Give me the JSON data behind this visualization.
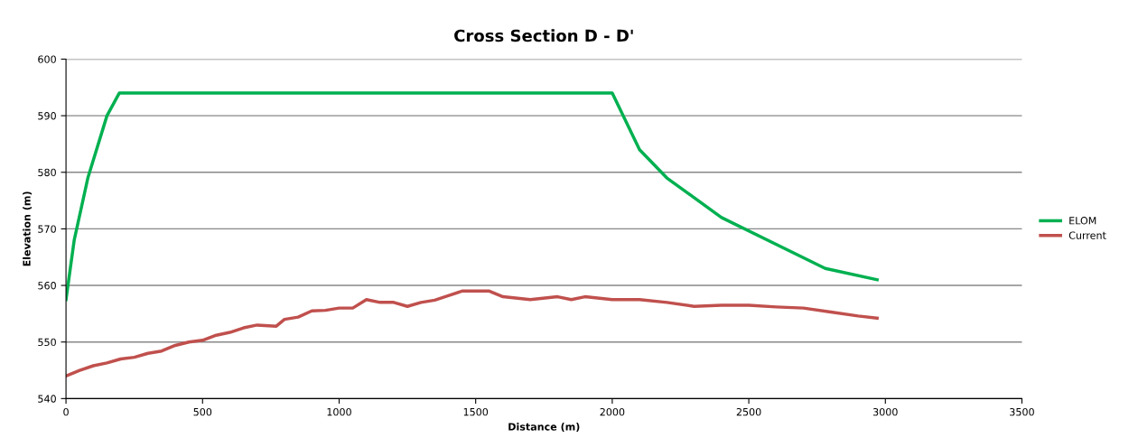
{
  "chart_data": {
    "type": "line",
    "title": "Cross Section D - D'",
    "xlabel": "Distance (m)",
    "ylabel": "Elevation (m)",
    "series": [
      {
        "name": "ELOM",
        "color": "#00b050",
        "x": [
          0,
          30,
          80,
          150,
          195,
          2000,
          2100,
          2200,
          2400,
          2780,
          2970
        ],
        "values": [
          557.5,
          568,
          579,
          590,
          594,
          594,
          584,
          579,
          572,
          563,
          561
        ]
      },
      {
        "name": "Current",
        "color": "#c0504d",
        "x": [
          0,
          50,
          100,
          150,
          200,
          250,
          300,
          350,
          400,
          450,
          500,
          550,
          600,
          650,
          700,
          770,
          800,
          850,
          900,
          950,
          1000,
          1050,
          1100,
          1150,
          1200,
          1250,
          1300,
          1350,
          1400,
          1450,
          1550,
          1600,
          1700,
          1800,
          1850,
          1900,
          2000,
          2100,
          2200,
          2300,
          2400,
          2500,
          2600,
          2700,
          2800,
          2900,
          2970
        ],
        "values": [
          544,
          545,
          545.8,
          546.3,
          547,
          547.3,
          548,
          548.4,
          549.4,
          550,
          550.3,
          551.2,
          551.7,
          552.5,
          553,
          552.8,
          554,
          554.4,
          555.5,
          555.6,
          556,
          556,
          557.5,
          557,
          557,
          556.3,
          557,
          557.4,
          558.2,
          559,
          559,
          558,
          557.5,
          558,
          557.5,
          558,
          557.5,
          557.5,
          557,
          556.3,
          556.5,
          556.5,
          556.2,
          556,
          555.3,
          554.6,
          554.2
        ]
      }
    ],
    "xlim": [
      0,
      3500
    ],
    "xticks": [
      0,
      500,
      1000,
      1500,
      2000,
      2500,
      3000,
      3500
    ],
    "ylim": [
      540,
      600
    ],
    "yticks": [
      540,
      550,
      560,
      570,
      580,
      590,
      600
    ],
    "grid": "y",
    "legend": "right",
    "marker": "none",
    "line_style": "solid"
  }
}
